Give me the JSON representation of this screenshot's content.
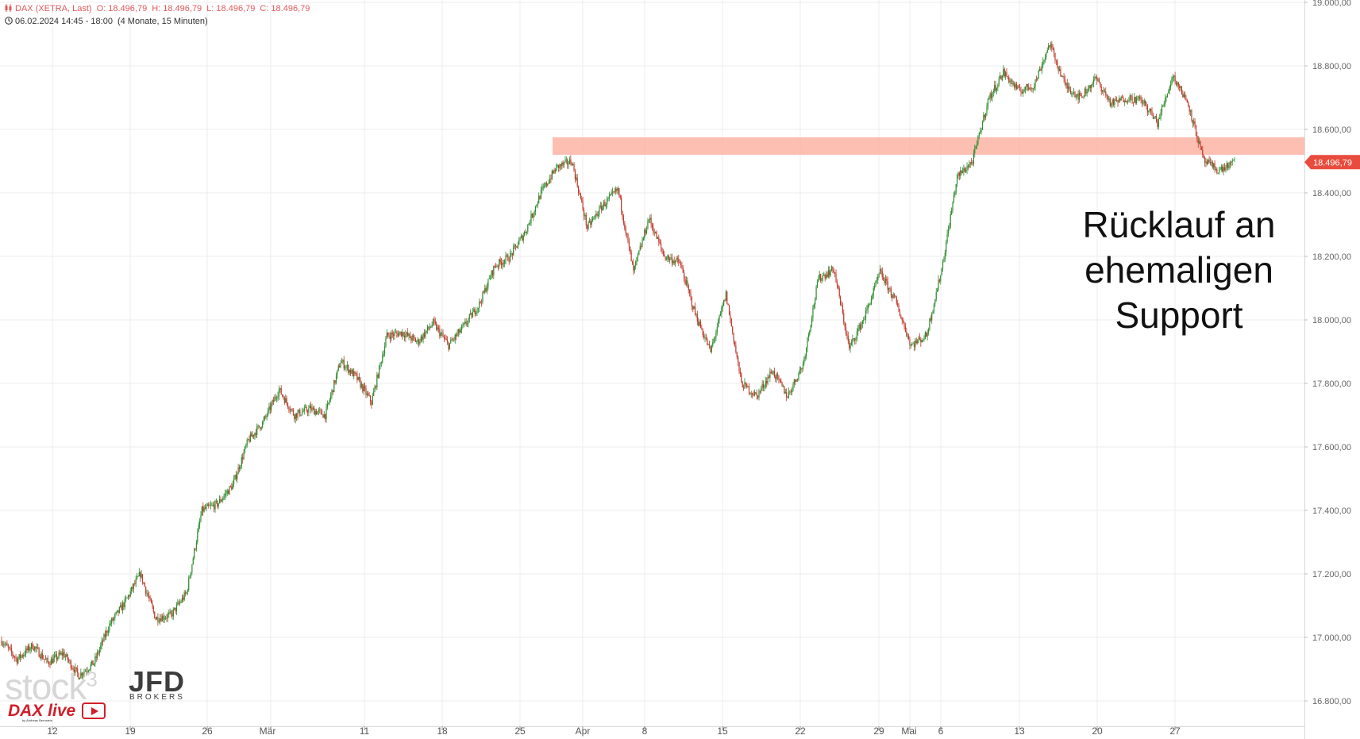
{
  "header": {
    "symbol": "DAX (XETRA, Last)",
    "open": "O: 18.496,79",
    "high": "H: 18.496,79",
    "low": "L: 18.496,79",
    "close": "C: 18.496,79",
    "date_range": "06.02.2024 14:45 - 18:00",
    "interval": "(4 Monate, 15 Minuten)",
    "icons": [
      "candlestick-icon",
      "clock-icon"
    ]
  },
  "price_label": "18.496,79",
  "annotation": [
    "Rücklauf an",
    "ehemaligen",
    "Support"
  ],
  "watermarks": {
    "stock3": "stock",
    "stock3_sup": "3",
    "jfd": "JFD",
    "jfd_sub": "BROKERS",
    "dax_live": "DAX live",
    "dax_live_sub": "by Andreas Bernstein"
  },
  "colors": {
    "up": "#2e8b2e",
    "down": "#c0392b",
    "zone": "#fbb4a4",
    "price_tag": "#e74c3c",
    "grid": "#ececec"
  },
  "chart_data": {
    "type": "candlestick",
    "title": "DAX (XETRA, Last)",
    "x_tick_labels": [
      "12",
      "19",
      "26",
      "Mär",
      "11",
      "18",
      "25",
      "Apr",
      "8",
      "15",
      "22",
      "29",
      "Mai",
      "6",
      "13",
      "20",
      "27"
    ],
    "y_tick_labels": [
      "16.800,00",
      "17.000,00",
      "17.200,00",
      "17.400,00",
      "17.600,00",
      "17.800,00",
      "18.000,00",
      "18.200,00",
      "18.400,00",
      "18.600,00",
      "18.800,00",
      "19.000,00"
    ],
    "ylim": [
      16720,
      19000
    ],
    "grid": true,
    "last_price": 18496.79,
    "support_zone": {
      "from_label": "Apr",
      "to": "present",
      "low": 18520,
      "high": 18575
    },
    "series": [
      {
        "name": "DAX",
        "points": [
          [
            "06.02.",
            16990
          ],
          [
            "07.02.",
            16930
          ],
          [
            "08.02.",
            16975
          ],
          [
            "09.02.",
            16920
          ],
          [
            "12.02.",
            16950
          ],
          [
            "13.02.",
            16880
          ],
          [
            "14.02.",
            16920
          ],
          [
            "15.02.",
            17040
          ],
          [
            "16.02.",
            17110
          ],
          [
            "19.02.",
            17200
          ],
          [
            "20.02.",
            17060
          ],
          [
            "21.02.",
            17070
          ],
          [
            "22.02.",
            17140
          ],
          [
            "23.02.",
            17400
          ],
          [
            "26.02.",
            17420
          ],
          [
            "27.02.",
            17480
          ],
          [
            "28.02.",
            17620
          ],
          [
            "29.02.",
            17680
          ],
          [
            "01.03.",
            17780
          ],
          [
            "04.03.",
            17700
          ],
          [
            "05.03.",
            17720
          ],
          [
            "06.03.",
            17700
          ],
          [
            "07.03.",
            17870
          ],
          [
            "08.03.",
            17820
          ],
          [
            "11.03.",
            17740
          ],
          [
            "12.03.",
            17950
          ],
          [
            "13.03.",
            17960
          ],
          [
            "14.03.",
            17930
          ],
          [
            "15.03.",
            17990
          ],
          [
            "18.03.",
            17920
          ],
          [
            "19.03.",
            17980
          ],
          [
            "20.03.",
            18050
          ],
          [
            "21.03.",
            18170
          ],
          [
            "22.03.",
            18200
          ],
          [
            "25.03.",
            18280
          ],
          [
            "26.03.",
            18400
          ],
          [
            "27.03.",
            18480
          ],
          [
            "28.03.",
            18500
          ],
          [
            "02.04.",
            18290
          ],
          [
            "03.04.",
            18360
          ],
          [
            "04.04.",
            18410
          ],
          [
            "05.04.",
            18150
          ],
          [
            "08.04.",
            18320
          ],
          [
            "09.04.",
            18200
          ],
          [
            "10.04.",
            18180
          ],
          [
            "11.04.",
            18020
          ],
          [
            "12.04.",
            17900
          ],
          [
            "15.04.",
            18080
          ],
          [
            "16.04.",
            17800
          ],
          [
            "17.04.",
            17760
          ],
          [
            "18.04.",
            17840
          ],
          [
            "19.04.",
            17760
          ],
          [
            "22.04.",
            17860
          ],
          [
            "23.04.",
            18130
          ],
          [
            "24.04.",
            18160
          ],
          [
            "25.04.",
            17910
          ],
          [
            "26.04.",
            18010
          ],
          [
            "29.04.",
            18150
          ],
          [
            "30.04.",
            18060
          ],
          [
            "02.05.",
            17920
          ],
          [
            "03.05.",
            17950
          ],
          [
            "06.05.",
            18160
          ],
          [
            "07.05.",
            18450
          ],
          [
            "08.05.",
            18500
          ],
          [
            "09.05.",
            18690
          ],
          [
            "10.05.",
            18780
          ],
          [
            "13.05.",
            18720
          ],
          [
            "14.05.",
            18740
          ],
          [
            "15.05.",
            18870
          ],
          [
            "16.05.",
            18740
          ],
          [
            "17.05.",
            18700
          ],
          [
            "20.05.",
            18760
          ],
          [
            "21.05.",
            18680
          ],
          [
            "22.05.",
            18700
          ],
          [
            "23.05.",
            18690
          ],
          [
            "24.05.",
            18620
          ],
          [
            "27.05.",
            18770
          ],
          [
            "28.05.",
            18680
          ],
          [
            "29.05.",
            18500
          ],
          [
            "30.05.",
            18470
          ],
          [
            "31.05.",
            18497
          ]
        ]
      }
    ]
  }
}
